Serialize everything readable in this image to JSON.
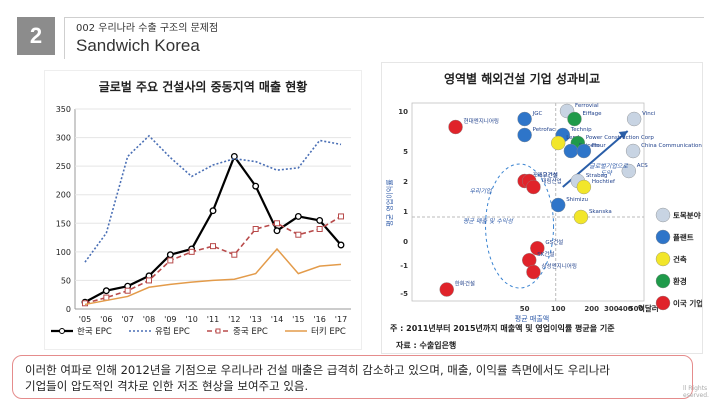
{
  "header": {
    "number": "2",
    "subtitle": "002 우리나라 수출 구조의 문제점",
    "title": "Sandwich Korea"
  },
  "left_chart": {
    "title": "글로벌 주요 건설사의 중동지역 매출 현황"
  },
  "chart_data": [
    {
      "type": "line",
      "title": "글로벌 주요 건설사의 중동지역 매출 현황",
      "categories": [
        "'05",
        "'06",
        "'07",
        "'08",
        "'09",
        "'10",
        "'11",
        "'12",
        "'13",
        "'14",
        "'15",
        "'16",
        "'17"
      ],
      "ylim": [
        0,
        350
      ],
      "yticks": [
        0,
        50,
        100,
        150,
        200,
        250,
        300,
        350
      ],
      "grid": true,
      "legend_position": "bottom",
      "series": [
        {
          "name": "한국 EPC",
          "values": [
            12,
            32,
            40,
            58,
            95,
            105,
            172,
            267,
            215,
            137,
            162,
            155,
            112
          ],
          "color": "#000000",
          "style": "solid-markers"
        },
        {
          "name": "유럽 EPC",
          "values": [
            82,
            133,
            267,
            303,
            265,
            232,
            252,
            263,
            258,
            243,
            247,
            295,
            288
          ],
          "color": "#4a6fb5",
          "style": "dotted"
        },
        {
          "name": "중국 EPC",
          "values": [
            10,
            20,
            32,
            50,
            85,
            100,
            110,
            95,
            140,
            150,
            130,
            140,
            162
          ],
          "color": "#b84a4a",
          "style": "dashed-square"
        },
        {
          "name": "터키 EPC",
          "values": [
            8,
            15,
            22,
            38,
            43,
            47,
            50,
            52,
            62,
            105,
            62,
            75,
            78
          ],
          "color": "#e39b4a",
          "style": "solid"
        }
      ]
    },
    {
      "type": "scatter",
      "title": "영역별 해외건설 기업 성과비교",
      "xlabel": "평균 매출액",
      "ylabel": "평균 영업이익률",
      "x_unit": "억달러",
      "xticks": [
        50,
        100,
        200,
        300,
        400,
        500
      ],
      "yticks": [
        10,
        5,
        2,
        1,
        0,
        -1,
        -5
      ],
      "note": "주 : 2011년부터 2015년까지 매출액 및 영업이익률 평균을 기준",
      "source": "자료 : 수출입은행",
      "legend": [
        {
          "label": "토목분야",
          "color": "#c8d4e3"
        },
        {
          "label": "플랜트",
          "color": "#2e75c9"
        },
        {
          "label": "건축",
          "color": "#f2e62a"
        },
        {
          "label": "환경",
          "color": "#1f9a4a"
        },
        {
          "label": "이국 기업",
          "color": "#e0232a"
        }
      ],
      "points": [
        {
          "label": "Ferrovial",
          "x": 120,
          "y": 10,
          "category": "토목분야"
        },
        {
          "label": "JGC",
          "x": 50,
          "y": 9,
          "category": "플랜트"
        },
        {
          "label": "Eiffage",
          "x": 140,
          "y": 9,
          "category": "환경"
        },
        {
          "label": "Vinci",
          "x": 480,
          "y": 9,
          "category": "토목분야"
        },
        {
          "label": "현대엔지니어링",
          "x": 12,
          "y": 8,
          "category": "이국 기업"
        },
        {
          "label": "Technip",
          "x": 110,
          "y": 7,
          "category": "플랜트"
        },
        {
          "label": "Petrofac",
          "x": 50,
          "y": 7,
          "category": "플랜트"
        },
        {
          "label": "Lend",
          "x": 100,
          "y": 6,
          "category": "건축"
        },
        {
          "label": "Power Construction Corp",
          "x": 150,
          "y": 6,
          "category": "환경"
        },
        {
          "label": "Saipem",
          "x": 130,
          "y": 5,
          "category": "플랜트"
        },
        {
          "label": "Flour",
          "x": 170,
          "y": 5,
          "category": "플랜트"
        },
        {
          "label": "China Communication Construction",
          "x": 470,
          "y": 5,
          "category": "토목분야"
        },
        {
          "label": "ACS",
          "x": 430,
          "y": 3,
          "category": "토목분야"
        },
        {
          "label": "포스코건설",
          "x": 50,
          "y": 2,
          "category": "이국 기업"
        },
        {
          "label": "대우건설",
          "x": 55,
          "y": 2,
          "category": "이국 기업"
        },
        {
          "label": "대림산업",
          "x": 60,
          "y": 1.8,
          "category": "이국 기업"
        },
        {
          "label": "Strabag",
          "x": 150,
          "y": 2,
          "category": "토목분야"
        },
        {
          "label": "Hochtief",
          "x": 170,
          "y": 1.8,
          "category": "건축"
        },
        {
          "label": "Shimizu",
          "x": 100,
          "y": 1.2,
          "category": "플랜트"
        },
        {
          "label": "Skanska",
          "x": 160,
          "y": 0.8,
          "category": "건축"
        },
        {
          "label": "GS건설",
          "x": 65,
          "y": -0.3,
          "category": "이국 기업"
        },
        {
          "label": "SK건설",
          "x": 55,
          "y": -0.8,
          "category": "이국 기업"
        },
        {
          "label": "삼성엔지니어링",
          "x": 60,
          "y": -2,
          "category": "이국 기업"
        },
        {
          "label": "한화건설",
          "x": 10,
          "y": -4.5,
          "category": "이국 기업"
        }
      ],
      "annotations": [
        "우리기업",
        "평균 매출 및 수익성",
        "글로벌기업으로",
        "도약"
      ]
    }
  ],
  "footer": {
    "note_line1": "이러한 여파로 인해 2012년을 기점으로 우리나라 건설 매출은 급격히 감소하고 있으며, 매출, 이익률 측면에서도 우리나라",
    "note_line2": "기업들이 압도적인 격차로 인한 저조 현상을 보여주고 있음.",
    "copyright_line1": "ll Rights",
    "copyright_line2": "eserved."
  }
}
